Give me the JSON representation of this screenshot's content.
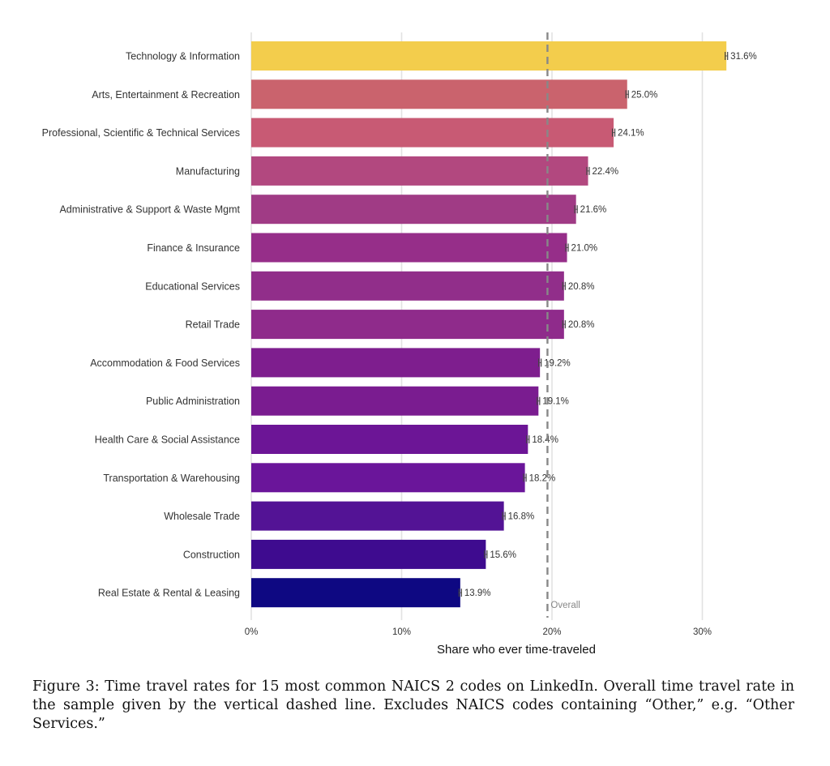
{
  "chart_data": {
    "type": "bar",
    "orientation": "horizontal",
    "categories": [
      "Technology & Information",
      "Arts, Entertainment & Recreation",
      "Professional, Scientific & Technical Services",
      "Manufacturing",
      "Administrative & Support & Waste Mgmt",
      "Finance & Insurance",
      "Educational Services",
      "Retail Trade",
      "Accommodation & Food Services",
      "Public Administration",
      "Health Care & Social Assistance",
      "Transportation & Warehousing",
      "Wholesale Trade",
      "Construction",
      "Real Estate & Rental & Leasing"
    ],
    "values": [
      31.6,
      25.0,
      24.1,
      22.4,
      21.6,
      21.0,
      20.8,
      20.8,
      19.2,
      19.1,
      18.4,
      18.2,
      16.8,
      15.6,
      13.9
    ],
    "value_labels": [
      "31.6%",
      "25.0%",
      "24.1%",
      "22.4%",
      "21.6%",
      "21.0%",
      "20.8%",
      "20.8%",
      "19.2%",
      "19.1%",
      "18.4%",
      "18.2%",
      "16.8%",
      "15.6%",
      "13.9%"
    ],
    "error_bars": true,
    "colors": [
      "#f3cd4c",
      "#ca636d",
      "#c85a74",
      "#b2487f",
      "#a03b85",
      "#962e89",
      "#912e8a",
      "#8f2b8b",
      "#7e1e8e",
      "#7a1c90",
      "#6c1596",
      "#6a159a",
      "#531395",
      "#3e0b8f",
      "#0e0882"
    ],
    "xlabel": "Share who ever time-traveled",
    "ylabel": "",
    "xlim": [
      0,
      32.5
    ],
    "x_ticks": [
      0,
      10,
      20,
      30
    ],
    "x_tick_labels": [
      "0%",
      "10%",
      "20%",
      "30%"
    ],
    "reference_line": {
      "value": 19.7,
      "label": "Overall",
      "style": "dashed",
      "color": "#888888"
    },
    "grid": "vertical major",
    "legend": "none"
  },
  "caption": "Figure 3: Time travel rates for 15 most common NAICS 2 codes on LinkedIn. Overall time travel rate in the sample given by the vertical dashed line. Excludes NAICS codes containing “Other,” e.g. “Other Services.”"
}
